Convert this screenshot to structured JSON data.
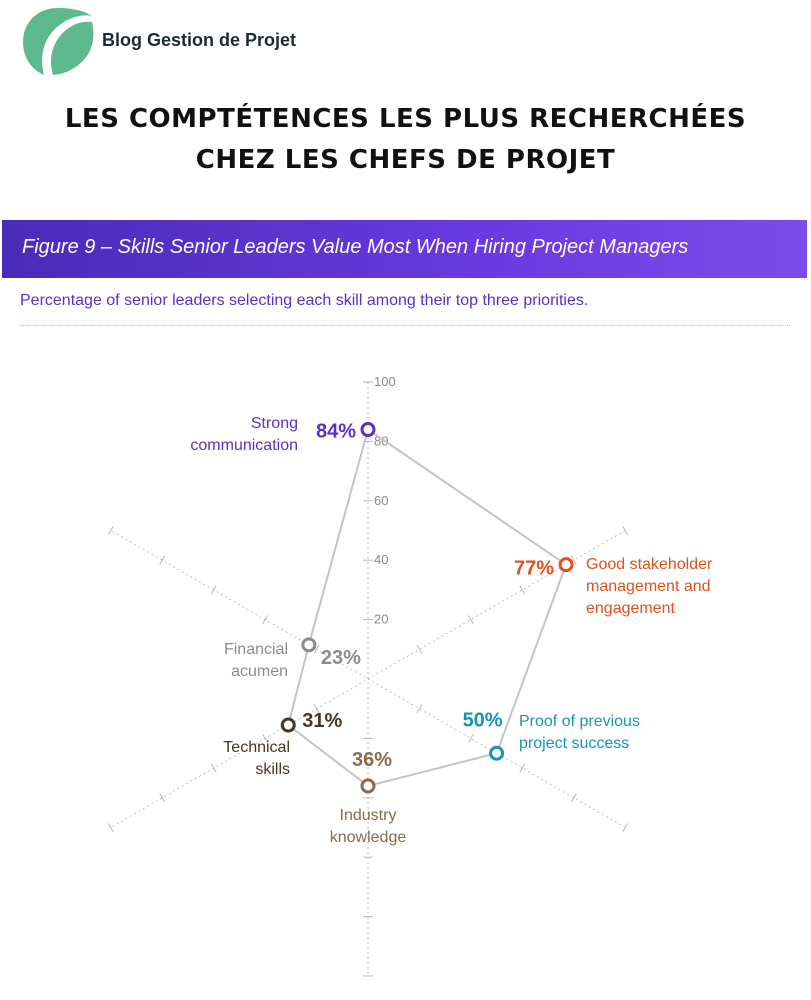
{
  "brand": {
    "name": "Blog Gestion de Projet",
    "logo_icon": "leaf-logo-icon",
    "logo_color": "#5fb98e"
  },
  "headline": {
    "line1": "LES COMPTÉTENCES LES PLUS RECHERCHÉES",
    "line2": "CHEZ LES CHEFS DE PROJET"
  },
  "figure": {
    "title": "Figure 9 – Skills Senior Leaders Value Most When Hiring Project Managers",
    "subtitle": "Percentage of senior leaders selecting each skill among their top three priorities.",
    "bar_color": "#5a34cc"
  },
  "chart_data": {
    "type": "radar",
    "title": "Figure 9 – Skills Senior Leaders Value Most When Hiring Project Managers",
    "subtitle": "Percentage of senior leaders selecting each skill among their top three priorities.",
    "rlim": [
      0,
      100
    ],
    "ticks": [
      20,
      40,
      60,
      80,
      100
    ],
    "grid": true,
    "axes": [
      {
        "label": [
          "Strong",
          "communication"
        ],
        "value": 84,
        "value_label": "84%",
        "color": "#5b2fc9",
        "angle": 90
      },
      {
        "label": [
          "Good stakeholder",
          "management and",
          "engagement"
        ],
        "value": 77,
        "value_label": "77%",
        "color": "#e2511d",
        "angle": 30
      },
      {
        "label": [
          "Proof of previous",
          "project success"
        ],
        "value": 50,
        "value_label": "50%",
        "color": "#1694b7",
        "angle": -30
      },
      {
        "label": [
          "Industry",
          "knowledge"
        ],
        "value": 36,
        "value_label": "36%",
        "color": "#8a6a4f",
        "angle": -90
      },
      {
        "label": [
          "Technical",
          "skills"
        ],
        "value": 31,
        "value_label": "31%",
        "color": "#4b3423",
        "angle": -150
      },
      {
        "label": [
          "Financial",
          "acumen"
        ],
        "value": 23,
        "value_label": "23%",
        "color": "#8c8c8c",
        "angle": 150
      }
    ]
  }
}
